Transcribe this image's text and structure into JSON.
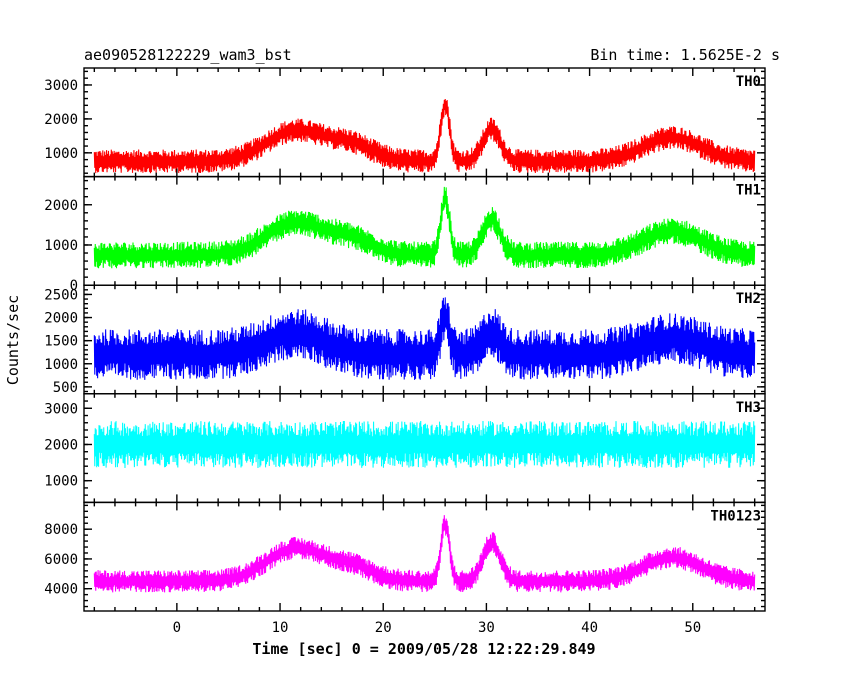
{
  "header": {
    "title": "ae090528122229_wam3_bst",
    "bin_time": "Bin time: 1.5625E-2 s"
  },
  "chart_data": {
    "type": "line",
    "xlabel": "Time [sec] 0 = 2009/05/28 12:22:29.849",
    "ylabel": "Counts/sec",
    "xlim": [
      -9,
      57
    ],
    "x_ticks": [
      0,
      10,
      20,
      30,
      40,
      50
    ],
    "x_range_data": [
      -8,
      56
    ],
    "panels": [
      {
        "name": "TH0",
        "color": "#ff0000",
        "ylim": [
          300,
          3500
        ],
        "y_ticks": [
          1000,
          2000,
          3000
        ],
        "baseline": 750,
        "noise": 350,
        "peaks": [
          {
            "t": 11.5,
            "amp": 900,
            "w": 4
          },
          {
            "t": 17,
            "amp": 450,
            "w": 3
          },
          {
            "t": 26,
            "amp": 1700,
            "w": 0.6
          },
          {
            "t": 30.5,
            "amp": 950,
            "w": 1.2
          },
          {
            "t": 48,
            "amp": 700,
            "w": 4
          }
        ]
      },
      {
        "name": "TH1",
        "color": "#00ff00",
        "ylim": [
          0,
          2700
        ],
        "y_ticks": [
          0,
          1000,
          2000
        ],
        "baseline": 750,
        "noise": 330,
        "peaks": [
          {
            "t": 11.5,
            "amp": 800,
            "w": 4
          },
          {
            "t": 17,
            "amp": 350,
            "w": 3
          },
          {
            "t": 26,
            "amp": 1400,
            "w": 0.6
          },
          {
            "t": 30.5,
            "amp": 900,
            "w": 1.2
          },
          {
            "t": 48,
            "amp": 600,
            "w": 4
          }
        ]
      },
      {
        "name": "TH2",
        "color": "#0000ff",
        "ylim": [
          350,
          2700
        ],
        "y_ticks": [
          500,
          1000,
          1500,
          2000,
          2500
        ],
        "baseline": 1200,
        "noise": 550,
        "peaks": [
          {
            "t": 11.5,
            "amp": 450,
            "w": 4
          },
          {
            "t": 26,
            "amp": 800,
            "w": 0.6
          },
          {
            "t": 30.5,
            "amp": 500,
            "w": 1.2
          },
          {
            "t": 48,
            "amp": 350,
            "w": 4
          }
        ]
      },
      {
        "name": "TH3",
        "color": "#00ffff",
        "ylim": [
          400,
          3400
        ],
        "y_ticks": [
          1000,
          2000,
          3000
        ],
        "baseline": 2000,
        "noise": 650,
        "peaks": []
      },
      {
        "name": "TH0123",
        "color": "#ff00ff",
        "ylim": [
          2500,
          9800
        ],
        "y_ticks": [
          4000,
          6000,
          8000
        ],
        "baseline": 4500,
        "noise": 750,
        "peaks": [
          {
            "t": 11.5,
            "amp": 2200,
            "w": 4
          },
          {
            "t": 17,
            "amp": 900,
            "w": 3
          },
          {
            "t": 26,
            "amp": 3800,
            "w": 0.6
          },
          {
            "t": 30.5,
            "amp": 2600,
            "w": 1.2
          },
          {
            "t": 48,
            "amp": 1600,
            "w": 4
          }
        ]
      }
    ]
  }
}
